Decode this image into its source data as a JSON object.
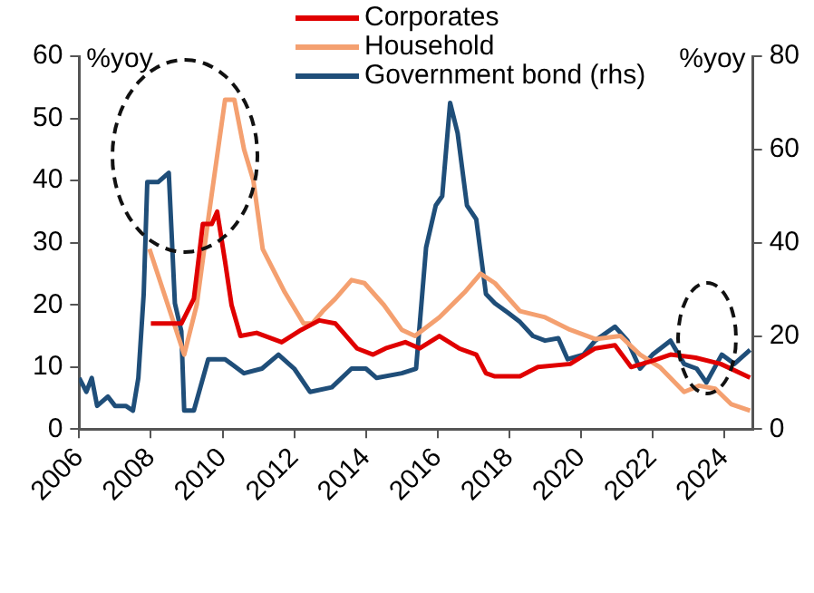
{
  "chart_data": {
    "type": "line",
    "ylabel": "%yoy",
    "y2label": "%yoy",
    "xlim": [
      2006,
      2024.8
    ],
    "xticks": [
      2006,
      2008,
      2010,
      2012,
      2014,
      2016,
      2018,
      2020,
      2022,
      2024
    ],
    "ylim": [
      0,
      60
    ],
    "yticks": [
      0,
      10,
      20,
      30,
      40,
      50,
      60
    ],
    "y2lim": [
      0,
      80
    ],
    "y2ticks": [
      0,
      20,
      40,
      60,
      80
    ],
    "grid": false,
    "legend": "top",
    "marker": "none",
    "line_style": "solid",
    "series": [
      {
        "name": "Corporates",
        "color": "#e00000",
        "x": [
          2008.0,
          2008.85,
          2009.2,
          2009.45,
          2009.7,
          2009.85,
          2010.07,
          2010.25,
          2010.5,
          2010.95,
          2011.65,
          2012.2,
          2012.7,
          2013.15,
          2013.75,
          2014.2,
          2014.55,
          2015.1,
          2015.5,
          2016.05,
          2016.6,
          2017.08,
          2017.35,
          2017.6,
          2018.3,
          2018.8,
          2019.7,
          2020.4,
          2020.95,
          2021.4,
          2022.0,
          2022.5,
          2023.2,
          2023.9,
          2024.72
        ],
        "values": [
          17,
          17,
          21,
          33,
          33,
          35,
          27,
          20,
          15,
          15.5,
          14,
          16,
          17.5,
          17,
          13,
          12,
          13,
          14,
          13,
          15,
          13,
          12,
          9,
          8.5,
          8.5,
          10,
          10.5,
          13,
          13.5,
          10,
          11,
          12,
          11.5,
          10.5,
          8.3
        ]
      },
      {
        "name": "Household",
        "color": "#f4a070",
        "x": [
          2007.96,
          2008.93,
          2009.28,
          2009.63,
          2010.07,
          2010.33,
          2010.6,
          2010.86,
          2011.12,
          2011.74,
          2012.26,
          2012.5,
          2012.8,
          2013.15,
          2013.6,
          2013.96,
          2014.5,
          2015.0,
          2015.37,
          2016.05,
          2016.75,
          2017.2,
          2017.6,
          2018.3,
          2019.0,
          2019.7,
          2020.4,
          2021.1,
          2021.65,
          2022.2,
          2022.88,
          2023.3,
          2023.75,
          2024.2,
          2024.72
        ],
        "values": [
          29,
          12,
          20,
          35,
          53,
          53,
          45,
          40,
          29,
          22,
          17,
          17,
          19,
          21,
          24,
          23.5,
          20,
          16,
          15,
          18,
          22,
          25,
          23.5,
          19,
          18,
          16,
          14.5,
          15,
          12,
          10,
          6,
          7,
          6.5,
          4,
          3
        ]
      },
      {
        "name": "Government bond (rhs)",
        "color": "#1f4e79",
        "axis": "y2",
        "x": [
          2006.0,
          2006.2,
          2006.35,
          2006.5,
          2006.8,
          2007.0,
          2007.3,
          2007.5,
          2007.65,
          2007.8,
          2007.9,
          2008.2,
          2008.5,
          2008.67,
          2008.85,
          2008.93,
          2009.2,
          2009.6,
          2010.07,
          2010.6,
          2011.1,
          2011.56,
          2012.0,
          2012.44,
          2013.05,
          2013.6,
          2014.0,
          2014.3,
          2015.0,
          2015.4,
          2015.68,
          2015.95,
          2016.13,
          2016.35,
          2016.56,
          2016.82,
          2017.08,
          2017.35,
          2017.6,
          2017.96,
          2018.3,
          2018.66,
          2019.0,
          2019.37,
          2019.63,
          2020.07,
          2020.4,
          2020.95,
          2021.3,
          2021.65,
          2022.0,
          2022.5,
          2022.88,
          2023.23,
          2023.5,
          2023.93,
          2024.28,
          2024.72
        ],
        "values": [
          11,
          8,
          11,
          5,
          7,
          5,
          5,
          4,
          11,
          29,
          53,
          53,
          55,
          27,
          21,
          4,
          4,
          15,
          15,
          12,
          13,
          16,
          13,
          8,
          9,
          13,
          13,
          11,
          12,
          13,
          39,
          48,
          50,
          70,
          63.5,
          48,
          45,
          29,
          27,
          25,
          23,
          20,
          19,
          19.5,
          15,
          16,
          19,
          22,
          19,
          13,
          16,
          19,
          14,
          13,
          10,
          16,
          14,
          17
        ]
      }
    ]
  }
}
